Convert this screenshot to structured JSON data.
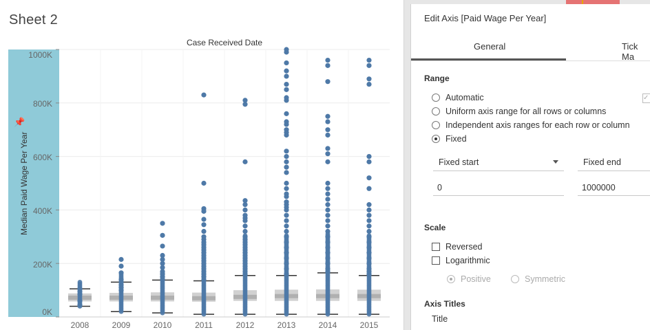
{
  "sheet": {
    "title": "Sheet 2",
    "column_header": "Case Received Date",
    "axis_title": "Median Paid Wage Per Year",
    "pin_icon": "pin-icon",
    "y_ticks": [
      "1000K",
      "800K",
      "600K",
      "400K",
      "200K",
      "0K"
    ],
    "colors": {
      "axis_band": "#8fcad8",
      "point": "#4e79a7",
      "box": "#c9c9c9"
    }
  },
  "chart_data": {
    "type": "scatter",
    "title": "",
    "xlabel": "Case Received Date",
    "ylabel": "Median Paid Wage Per Year",
    "ylim": [
      0,
      1000000
    ],
    "categories": [
      "2008",
      "2009",
      "2010",
      "2011",
      "2012",
      "2013",
      "2014",
      "2015"
    ],
    "boxplots": [
      {
        "year": "2008",
        "whisker_low": 40000,
        "q1": 58000,
        "median": 72000,
        "q3": 88000,
        "whisker_high": 105000
      },
      {
        "year": "2009",
        "whisker_low": 20000,
        "q1": 58000,
        "median": 72000,
        "q3": 90000,
        "whisker_high": 130000
      },
      {
        "year": "2010",
        "whisker_low": 15000,
        "q1": 58000,
        "median": 72000,
        "q3": 92000,
        "whisker_high": 138000
      },
      {
        "year": "2011",
        "whisker_low": 10000,
        "q1": 57000,
        "median": 70000,
        "q3": 91000,
        "whisker_high": 135000
      },
      {
        "year": "2012",
        "whisker_low": 10000,
        "q1": 60000,
        "median": 75000,
        "q3": 100000,
        "whisker_high": 155000
      },
      {
        "year": "2013",
        "whisker_low": 10000,
        "q1": 60000,
        "median": 78000,
        "q3": 102000,
        "whisker_high": 155000
      },
      {
        "year": "2014",
        "whisker_low": 10000,
        "q1": 60000,
        "median": 78000,
        "q3": 103000,
        "whisker_high": 165000
      },
      {
        "year": "2015",
        "whisker_low": 10000,
        "q1": 60000,
        "median": 78000,
        "q3": 102000,
        "whisker_high": 155000
      }
    ],
    "outliers": [
      {
        "year": "2008",
        "values": [
          105000,
          95000,
          85000,
          60000,
          45000
        ]
      },
      {
        "year": "2009",
        "values": [
          215000,
          190000,
          165000,
          140000,
          130000,
          120000,
          110000,
          100000
        ]
      },
      {
        "year": "2010",
        "values": [
          350000,
          305000,
          265000,
          230000,
          215000,
          200000,
          185000,
          170000,
          160000,
          150000,
          140000
        ]
      },
      {
        "year": "2011",
        "values": [
          830000,
          500000,
          405000,
          395000,
          365000,
          345000,
          320000,
          300000,
          290000,
          280000,
          270000,
          260000,
          250000,
          240000,
          230000,
          220000,
          210000,
          200000,
          190000,
          180000,
          170000,
          160000,
          150000,
          140000
        ]
      },
      {
        "year": "2012",
        "values": [
          810000,
          795000,
          580000,
          435000,
          420000,
          400000,
          380000,
          370000,
          360000,
          340000,
          320000,
          300000,
          290000,
          280000,
          270000,
          260000,
          250000,
          240000,
          230000,
          220000,
          210000,
          200000,
          190000,
          180000,
          170000,
          160000
        ]
      },
      {
        "year": "2013",
        "values": [
          1000000,
          990000,
          950000,
          920000,
          900000,
          870000,
          850000,
          820000,
          810000,
          760000,
          730000,
          720000,
          700000,
          690000,
          680000,
          620000,
          600000,
          580000,
          560000,
          540000,
          500000,
          480000,
          460000,
          450000,
          430000,
          420000,
          410000,
          400000,
          380000,
          360000,
          340000,
          320000,
          300000,
          280000,
          260000,
          240000,
          220000,
          200000,
          180000,
          160000
        ]
      },
      {
        "year": "2014",
        "values": [
          960000,
          940000,
          880000,
          750000,
          730000,
          700000,
          680000,
          630000,
          610000,
          580000,
          500000,
          480000,
          460000,
          440000,
          420000,
          400000,
          380000,
          360000,
          340000,
          320000,
          300000,
          280000,
          260000,
          240000,
          220000,
          200000,
          180000,
          170000
        ]
      },
      {
        "year": "2015",
        "values": [
          960000,
          940000,
          890000,
          870000,
          600000,
          580000,
          520000,
          480000,
          420000,
          400000,
          380000,
          360000,
          340000,
          320000,
          300000,
          280000,
          260000,
          240000,
          220000,
          200000,
          180000,
          170000,
          160000
        ]
      }
    ]
  },
  "panel": {
    "title": "Edit Axis [Paid Wage Per Year]",
    "tabs": [
      {
        "label": "General",
        "active": true
      },
      {
        "label": "Tick Ma",
        "active": false
      }
    ],
    "range": {
      "heading": "Range",
      "options": [
        {
          "label": "Automatic",
          "selected": false
        },
        {
          "label": "Uniform axis range for all rows or columns",
          "selected": false
        },
        {
          "label": "Independent axis ranges for each row or column",
          "selected": false
        },
        {
          "label": "Fixed",
          "selected": true
        }
      ],
      "fixed_start_label": "Fixed start",
      "fixed_end_label": "Fixed end",
      "start_value": "0",
      "end_value": "1000000"
    },
    "scale": {
      "heading": "Scale",
      "reversed_label": "Reversed",
      "logarithmic_label": "Logarithmic",
      "positive_label": "Positive",
      "symmetric_label": "Symmetric"
    },
    "axis_titles": {
      "heading": "Axis Titles",
      "title_label": "Title"
    }
  }
}
